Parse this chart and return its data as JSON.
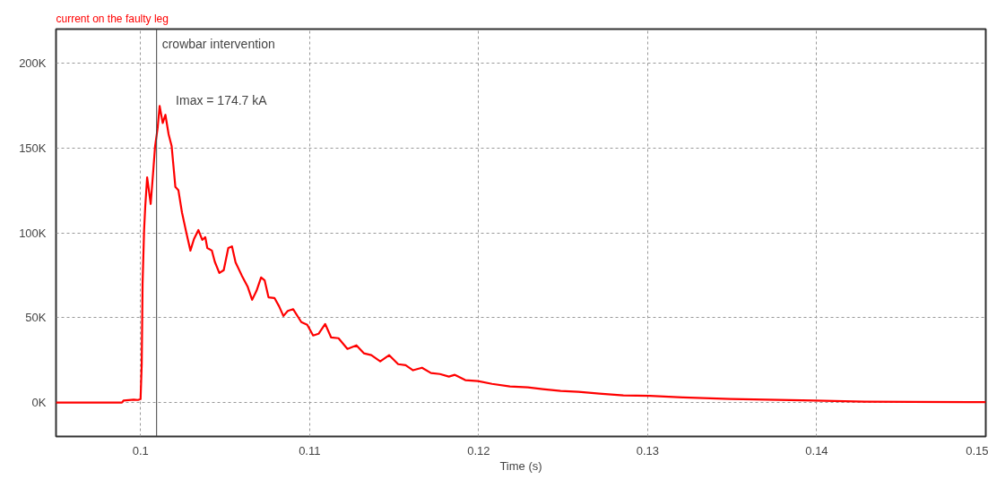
{
  "chart_data": {
    "type": "line",
    "title": "current on the faulty leg",
    "xlabel": "Time (s)",
    "x": [
      0.095,
      0.0989,
      0.099,
      0.0996,
      0.09985,
      0.1,
      0.10007,
      0.10012,
      0.10021,
      0.10028,
      0.10039,
      0.10048,
      0.1006,
      0.10074,
      0.10086,
      0.10101,
      0.10113,
      0.10131,
      0.10147,
      0.10166,
      0.10184,
      0.10206,
      0.10224,
      0.10245,
      0.10271,
      0.10295,
      0.10316,
      0.10342,
      0.10365,
      0.10383,
      0.10395,
      0.10422,
      0.10439,
      0.10466,
      0.10492,
      0.10519,
      0.10541,
      0.10562,
      0.10598,
      0.10633,
      0.1066,
      0.10686,
      0.10713,
      0.10734,
      0.10757,
      0.10792,
      0.10819,
      0.10845,
      0.10871,
      0.10903,
      0.10951,
      0.10986,
      0.11021,
      0.11053,
      0.11092,
      0.11127,
      0.11171,
      0.11224,
      0.11277,
      0.11321,
      0.11365,
      0.11418,
      0.11471,
      0.11524,
      0.11568,
      0.11612,
      0.11665,
      0.11718,
      0.11771,
      0.11824,
      0.11859,
      0.11921,
      0.11996,
      0.12079,
      0.12185,
      0.12291,
      0.12379,
      0.12485,
      0.12591,
      0.12714,
      0.12856,
      0.13014,
      0.13208,
      0.1349,
      0.13984,
      0.14284,
      0.149,
      0.15
    ],
    "series": [
      {
        "color": "#ff0000",
        "values": [
          0,
          0,
          1200,
          1700,
          1500,
          2000,
          22600,
          70000,
          101600,
          115800,
          132600,
          126000,
          117000,
          135000,
          151000,
          161600,
          174700,
          164700,
          169500,
          158000,
          151000,
          127000,
          125000,
          112000,
          100000,
          89500,
          96300,
          101600,
          95800,
          97400,
          91000,
          89500,
          83000,
          76300,
          78000,
          91000,
          92000,
          82600,
          75000,
          68400,
          60500,
          65800,
          73700,
          72000,
          62000,
          61600,
          56800,
          51000,
          54000,
          55000,
          47400,
          45800,
          39500,
          40500,
          46300,
          38400,
          37900,
          31600,
          33700,
          29000,
          27900,
          24200,
          27900,
          22600,
          22000,
          19000,
          20500,
          17400,
          16800,
          15300,
          16300,
          13200,
          12600,
          11000,
          9500,
          8900,
          7900,
          6800,
          6300,
          5300,
          4200,
          3900,
          3000,
          2100,
          1200,
          500,
          200,
          200
        ]
      }
    ],
    "xlim": [
      0.095,
      0.15
    ],
    "ylim": [
      -20000,
      220000
    ],
    "xticks": [
      0.1,
      0.11,
      0.12,
      0.13,
      0.14,
      0.15
    ],
    "yticks": [
      {
        "value": 0,
        "label": "0K"
      },
      {
        "value": 50000,
        "label": "50K"
      },
      {
        "value": 100000,
        "label": "100K"
      },
      {
        "value": 150000,
        "label": "150K"
      },
      {
        "value": 200000,
        "label": "200K"
      }
    ],
    "ref_lines": [
      {
        "axis": "x",
        "value": 0.10095,
        "label": "crowbar intervention",
        "color": "#404040"
      }
    ],
    "annotations": [
      {
        "text": "Imax = 174.7 kA",
        "x": 0.10113,
        "y": 174700
      }
    ],
    "grid": true,
    "marker": "none",
    "line_style": "solid"
  }
}
